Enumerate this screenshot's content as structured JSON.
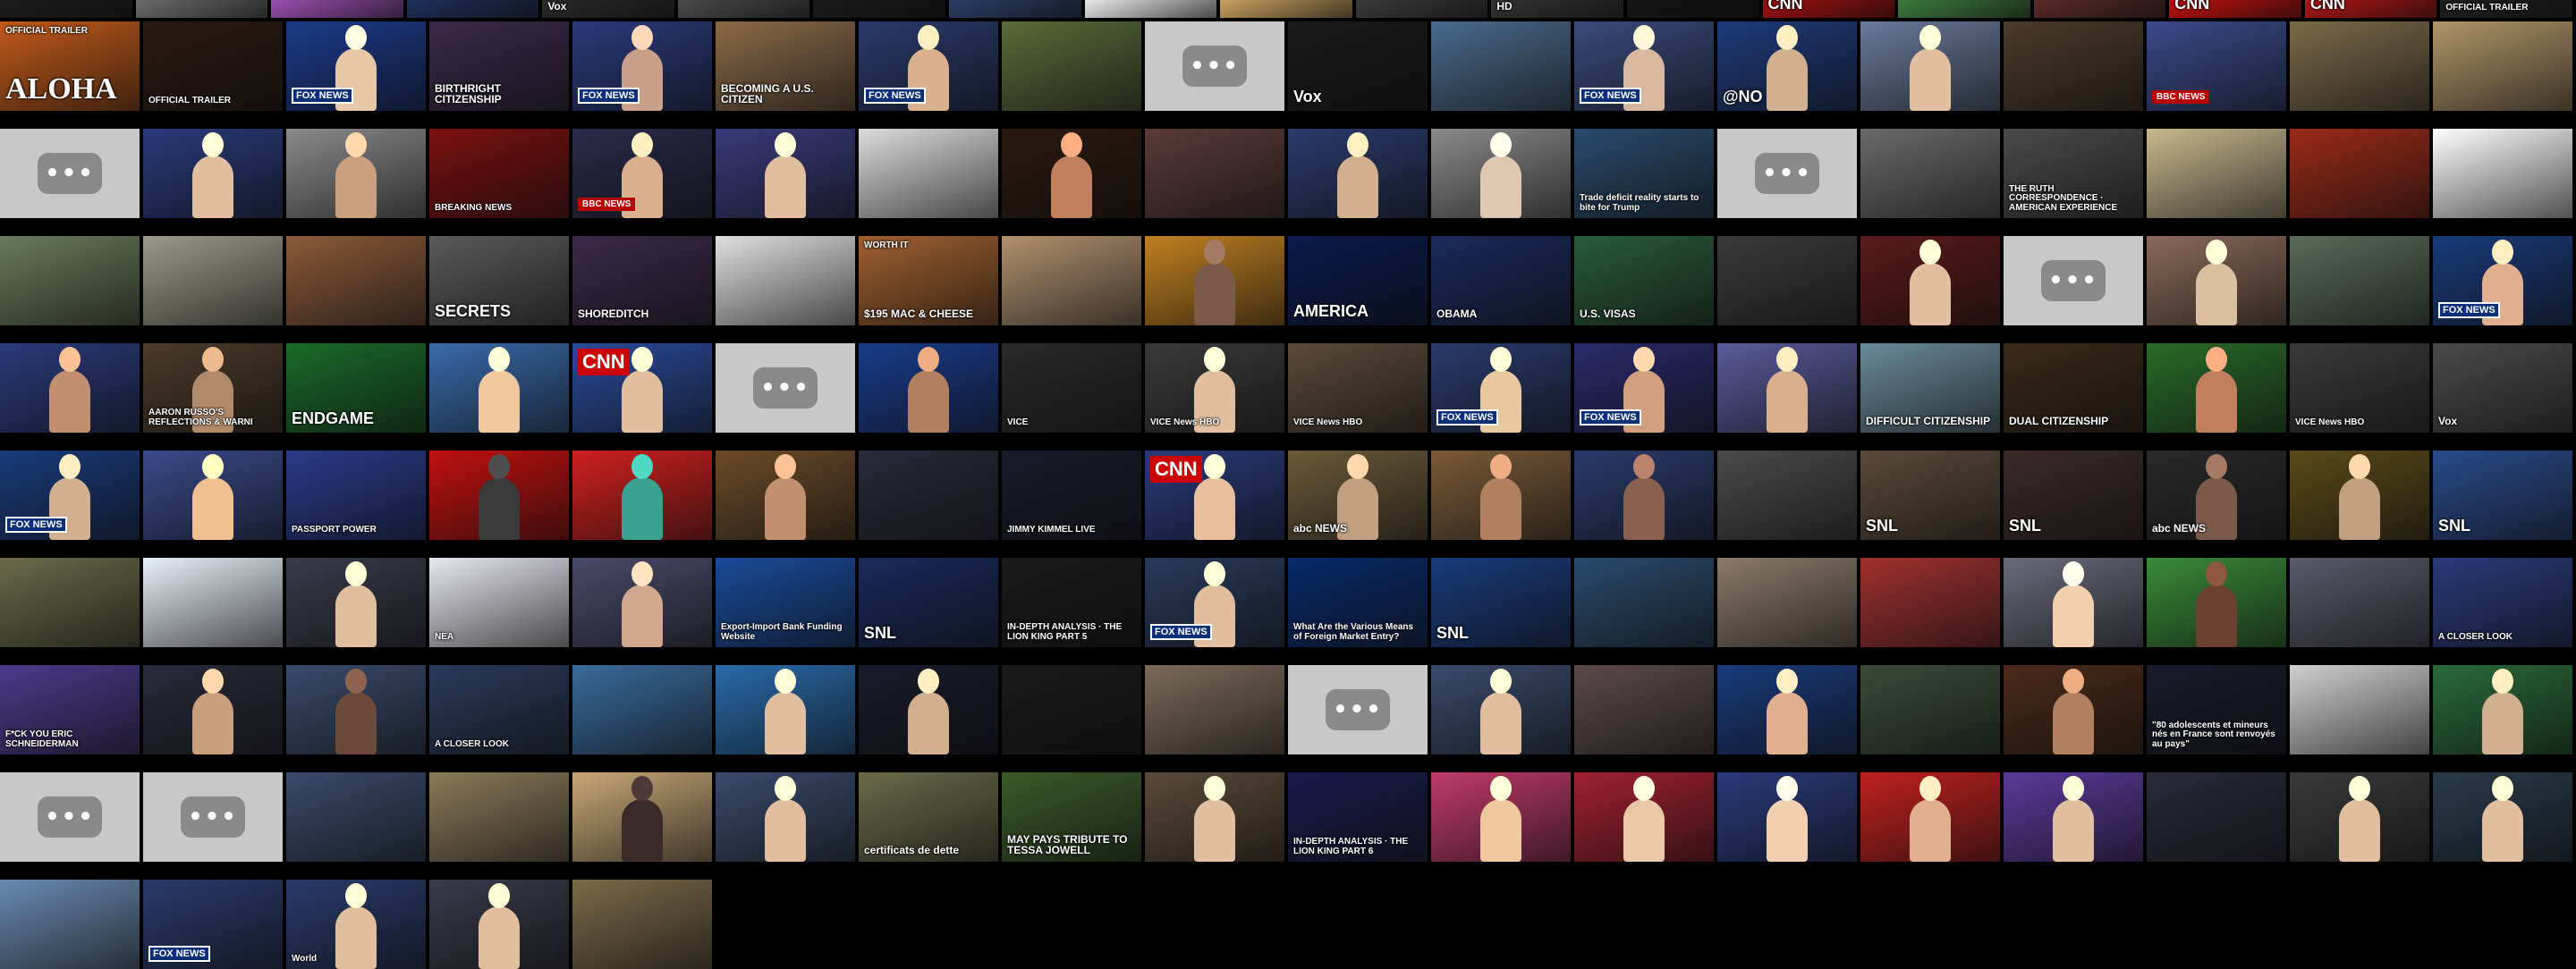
{
  "play_glyph": "•••",
  "tiles": [
    {
      "bg": "#1c1c1c"
    },
    {
      "bg": "#6b6b6b"
    },
    {
      "bg": "#9a4fb0"
    },
    {
      "bg": "#1f2f5a"
    },
    {
      "bg": "#2a2a2a",
      "cap": "Vox",
      "style": "sm"
    },
    {
      "bg": "#4a4a4a"
    },
    {
      "bg": "#1a1a1a"
    },
    {
      "bg": "#2b3e66"
    },
    {
      "bg": "#e8e8e8"
    },
    {
      "bg": "#c8a060"
    },
    {
      "bg": "#3a3a3a"
    },
    {
      "bg": "#333333",
      "cap": "HD",
      "style": "sm"
    },
    {
      "bg": "#151515"
    },
    {
      "bg": "#a01010",
      "cap": "CNN",
      "style": "mid"
    },
    {
      "bg": "#3d7a3d"
    },
    {
      "bg": "#5a2a2a"
    },
    {
      "bg": "#c01010",
      "cap": "CNN",
      "style": "mid"
    },
    {
      "bg": "#b01515",
      "cap": "CNN",
      "style": "mid"
    },
    {
      "bg": "#202020",
      "cap": "OFFICIAL TRAILER",
      "style": "xs"
    },
    {
      "bg": "#c25a1a",
      "cap": "ALOHA",
      "style": "big",
      "sub": "OFFICIAL TRAILER"
    },
    {
      "bg": "#2a1a12",
      "cap": "OFFICIAL TRAILER",
      "style": "xs"
    },
    {
      "bg": "#1d3a8a",
      "badge": "FOX NEWS",
      "btype": "fox",
      "person": "#e6c8a8"
    },
    {
      "bg": "#3a2a4a",
      "cap": "BIRTHRIGHT CITIZENSHIP",
      "style": "sm"
    },
    {
      "bg": "#2a3a7a",
      "badge": "FOX NEWS",
      "btype": "fox",
      "person": "#c9a08a"
    },
    {
      "bg": "#8a6a4a",
      "cap": "BECOMING A U.S. CITIZEN",
      "style": "sm"
    },
    {
      "bg": "#2a3a6a",
      "badge": "FOX NEWS",
      "btype": "fox",
      "person": "#d9b090"
    },
    {
      "bg": "#5a6a3a"
    },
    {
      "placeholder": true
    },
    {
      "bg": "#1a1a1a",
      "cap": "Vox",
      "style": "mid"
    },
    {
      "bg": "#4a6a8a"
    },
    {
      "bg": "#3a4a7a",
      "badge": "FOX NEWS",
      "btype": "fox",
      "person": "#d8b8a0"
    },
    {
      "bg": "#1f3a7a",
      "cap": "@NO",
      "style": "mid",
      "person": "#d0b090"
    },
    {
      "bg": "#6a7a9a",
      "person": "#e0c0a0"
    },
    {
      "bg": "#4a3a2a"
    },
    {
      "bg": "#3a4a8a",
      "badge": "BBC NEWS",
      "btype": "bbc"
    },
    {
      "bg": "#7a6a4a"
    },
    {
      "bg": "#b0956a"
    },
    {
      "placeholder": true
    },
    {
      "bg": "#2a3a7a",
      "person": "#e0c0a0"
    },
    {
      "bg": "#8a8a8a",
      "person": "#caa080"
    },
    {
      "bg": "#7a1010",
      "cap": "BREAKING NEWS",
      "style": "xs"
    },
    {
      "bg": "#2a2a4a",
      "badge": "BBC NEWS",
      "btype": "bbc",
      "person": "#d9b090"
    },
    {
      "bg": "#3a3a7a",
      "person": "#e0c0a0"
    },
    {
      "bg": "#dcdcdc"
    },
    {
      "bg": "#2a1a10",
      "person": "#c08060"
    },
    {
      "bg": "#5a3a3a"
    },
    {
      "bg": "#2a3a6a",
      "person": "#d0b090"
    },
    {
      "bg": "#8a8a8a",
      "person": "#e0c8b0"
    },
    {
      "bg": "#2a4a6a",
      "cap": "Trade deficit reality starts to bite for Trump",
      "style": "xs"
    },
    {
      "placeholder": true
    },
    {
      "bg": "#6a6a6a"
    },
    {
      "bg": "#4a4a4a",
      "cap": "THE RUTH CORRESPONDENCE · AMERICAN EXPERIENCE",
      "style": "xs"
    },
    {
      "bg": "#c8b890"
    },
    {
      "bg": "#9a2a1a"
    },
    {
      "bg": "#ffffff"
    },
    {
      "bg": "#6a7a5a"
    },
    {
      "bg": "#9a9a8a"
    },
    {
      "bg": "#8a5a3a"
    },
    {
      "bg": "#5a5a5a",
      "cap": "SECRETS",
      "style": "mid"
    },
    {
      "bg": "#3a2a4a",
      "cap": "SHOREDITCH",
      "style": "sm"
    },
    {
      "bg": "#e0e0e0"
    },
    {
      "bg": "#a06030",
      "cap": "$195 MAC & CHEESE",
      "style": "sm",
      "sub": "WORTH IT"
    },
    {
      "bg": "#b09070"
    },
    {
      "bg": "#c08020",
      "person": "#7a5a4a"
    },
    {
      "bg": "#0a1a4a",
      "cap": "AMERICA",
      "style": "mid"
    },
    {
      "bg": "#1a2a5a",
      "cap": "OBAMA",
      "style": "sm"
    },
    {
      "bg": "#2a5a3a",
      "cap": "U.S. VISAS",
      "style": "sm"
    },
    {
      "bg": "#3a3a3a"
    },
    {
      "bg": "#5a1a1a",
      "person": "#e0c0a0"
    },
    {
      "placeholder": true
    },
    {
      "bg": "#8a6a5a",
      "person": "#d8c0a0"
    },
    {
      "bg": "#5a6a5a"
    },
    {
      "bg": "#1a3a7a",
      "badge": "FOX NEWS",
      "btype": "fox",
      "person": "#e0b090"
    },
    {
      "bg": "#2a3a7a",
      "person": "#c09070"
    },
    {
      "bg": "#4a3a2a",
      "cap": "AARON RUSSO'S REFLECTIONS & WARNI",
      "style": "xs",
      "person": "#b08a6a"
    },
    {
      "bg": "#1a6a2a",
      "cap": "ENDGAME",
      "style": "mid"
    },
    {
      "bg": "#3a6aaa",
      "person": "#f0c8a0"
    },
    {
      "bg": "#2a4a9a",
      "badge": "CNN",
      "btype": "cnnb",
      "person": "#e0c0a0"
    },
    {
      "placeholder": true
    },
    {
      "bg": "#1a3a8a",
      "person": "#b08060"
    },
    {
      "bg": "#2a2a2a",
      "cap": "VICE",
      "style": "xs"
    },
    {
      "bg": "#3a3a3a",
      "cap": "VICE News HBO",
      "style": "xs",
      "person": "#e0c0a0"
    },
    {
      "bg": "#5a4a3a",
      "cap": "VICE News HBO",
      "style": "xs"
    },
    {
      "bg": "#2a3a6a",
      "badge": "FOX NEWS",
      "btype": "fox",
      "person": "#e8c8a0"
    },
    {
      "bg": "#2a2a6a",
      "badge": "FOX NEWS",
      "btype": "fox",
      "person": "#d0a080"
    },
    {
      "bg": "#5a5a9a",
      "person": "#d8b090"
    },
    {
      "bg": "#6a8a9a",
      "cap": "DIFFICULT CITIZENSHIP",
      "style": "sm"
    },
    {
      "bg": "#3a2a1a",
      "cap": "DUAL CITIZENSHIP",
      "style": "sm"
    },
    {
      "bg": "#2a6a2a",
      "person": "#c08060"
    },
    {
      "bg": "#3a3a3a",
      "cap": "VICE News HBO",
      "style": "xs"
    },
    {
      "bg": "#4a4a4a",
      "cap": "Vox",
      "style": "sm"
    },
    {
      "bg": "#1a3a7a",
      "badge": "FOX NEWS",
      "btype": "fox",
      "person": "#d0b090"
    },
    {
      "bg": "#3a4a8a",
      "person": "#f0c090"
    },
    {
      "bg": "#2a3a8a",
      "cap": "PASSPORT POWER",
      "style": "xs"
    },
    {
      "bg": "#c01010",
      "person": "#3a3a3a"
    },
    {
      "bg": "#d02020",
      "cap": "",
      "person": "#3aa090"
    },
    {
      "bg": "#6a4a2a",
      "person": "#c09070"
    },
    {
      "bg": "#2a2a3a"
    },
    {
      "bg": "#1a1a2a",
      "cap": "JIMMY KIMMEL LIVE",
      "style": "xs"
    },
    {
      "bg": "#2a3a7a",
      "badge": "CNN",
      "btype": "cnnb",
      "person": "#e8c0a0"
    },
    {
      "bg": "#6a5a3a",
      "cap": "abc NEWS",
      "style": "sm",
      "person": "#c0a080"
    },
    {
      "bg": "#7a5a3a",
      "person": "#b08060"
    },
    {
      "bg": "#2a3a6a",
      "person": "#8a6050"
    },
    {
      "bg": "#4a4a4a"
    },
    {
      "bg": "#5a4a3a",
      "cap": "SNL",
      "style": "mid"
    },
    {
      "bg": "#3a2a2a",
      "cap": "SNL",
      "style": "mid"
    },
    {
      "bg": "#2a2a2a",
      "cap": "abc NEWS",
      "style": "sm",
      "person": "#7a5a4a"
    },
    {
      "bg": "#5a4a1a",
      "person": "#c0a080"
    },
    {
      "bg": "#2a4a8a",
      "cap": "SNL",
      "style": "mid"
    },
    {
      "bg": "#6a6a4a"
    },
    {
      "bg": "#e8f0f8"
    },
    {
      "bg": "#3a3a4a",
      "person": "#e0c0a0"
    },
    {
      "bg": "#e8e8f0",
      "cap": "NEA",
      "style": "xs"
    },
    {
      "bg": "#4a4a6a",
      "person": "#d0a890"
    },
    {
      "bg": "#1a4a9a",
      "cap": "Export-Import Bank Funding Website",
      "style": "xs"
    },
    {
      "bg": "#1a2a5a",
      "cap": "SNL",
      "style": "mid"
    },
    {
      "bg": "#1a1a1a",
      "cap": "IN-DEPTH ANALYSIS · THE LION KING PART 5",
      "style": "xs"
    },
    {
      "bg": "#2a3a5a",
      "badge": "FOX NEWS",
      "btype": "fox",
      "person": "#e0c0a0"
    },
    {
      "bg": "#0a2a6a",
      "cap": "What Are the Various Means of Foreign Market Entry?",
      "style": "xs"
    },
    {
      "bg": "#1a3a7a",
      "cap": "SNL",
      "style": "mid"
    },
    {
      "bg": "#2a4a6a"
    },
    {
      "bg": "#8a7a6a"
    },
    {
      "bg": "#a03030"
    },
    {
      "bg": "#6a6a7a",
      "person": "#f0d0b0"
    },
    {
      "bg": "#3a8a3a",
      "person": "#6a4030"
    },
    {
      "bg": "#5a5a6a"
    },
    {
      "bg": "#2a3a7a",
      "cap": "A CLOSER LOOK",
      "style": "xs"
    },
    {
      "bg": "#4a3a8a",
      "cap": "F*CK YOU ERIC SCHNEIDERMAN",
      "style": "xs"
    },
    {
      "bg": "#2a2a3a",
      "person": "#c8a080"
    },
    {
      "bg": "#3a4a6a",
      "person": "#6a4a3a"
    },
    {
      "bg": "#2a3a5a",
      "cap": "A CLOSER LOOK",
      "style": "xs"
    },
    {
      "bg": "#3a6a9a"
    },
    {
      "bg": "#2a6aaa",
      "person": "#e0c0a0"
    },
    {
      "bg": "#1a1a2a",
      "person": "#d0b090"
    },
    {
      "bg": "#1a1a1a"
    },
    {
      "bg": "#7a6a5a"
    },
    {
      "placeholder": true
    },
    {
      "bg": "#3a4a6a",
      "person": "#e0c0a0"
    },
    {
      "bg": "#5a4a4a"
    },
    {
      "bg": "#1a3a7a",
      "person": "#e0b090"
    },
    {
      "bg": "#3a4a3a"
    },
    {
      "bg": "#4a2a1a",
      "person": "#b08060"
    },
    {
      "bg": "#1a1a2a",
      "cap": "\"80 adolescents et mineurs nés en France sont renvoyés au pays\"",
      "style": "xs"
    },
    {
      "bg": "#d0d0d0"
    },
    {
      "bg": "#2a6a3a",
      "person": "#d0b090"
    },
    {
      "placeholder": true
    },
    {
      "placeholder": true
    },
    {
      "bg": "#3a4a6a"
    },
    {
      "bg": "#8a7a5a"
    },
    {
      "bg": "#c8a878",
      "person": "#3a2a2a"
    },
    {
      "bg": "#3a4a6a",
      "person": "#e0c0a0"
    },
    {
      "bg": "#6a6a4a",
      "cap": "certificats de dette",
      "style": "sm"
    },
    {
      "bg": "#3a5a2a",
      "cap": "MAY PAYS TRIBUTE TO TESSA JOWELL",
      "style": "sm"
    },
    {
      "bg": "#5a4a3a",
      "person": "#e0c0a0"
    },
    {
      "bg": "#1a1a4a",
      "cap": "IN-DEPTH ANALYSIS · THE LION KING PART 6",
      "style": "xs"
    },
    {
      "bg": "#c03a6a",
      "person": "#f0c8a0"
    },
    {
      "bg": "#a02030",
      "person": "#e8c8a8"
    },
    {
      "bg": "#2a3a7a",
      "person": "#f0d0b0"
    },
    {
      "bg": "#c02020",
      "person": "#e0b090"
    },
    {
      "bg": "#5a3a9a",
      "person": "#e0c0a0"
    },
    {
      "bg": "#2a2a3a"
    },
    {
      "bg": "#3a3a3a",
      "person": "#e0c0a0"
    },
    {
      "bg": "#2a3a4a",
      "person": "#e0c0a0"
    },
    {
      "bg": "#6a8ab0"
    },
    {
      "bg": "#2a3a6a",
      "badge": "FOX NEWS",
      "btype": "fox"
    },
    {
      "bg": "#2a3a6a",
      "cap": "World",
      "style": "xs",
      "person": "#e0c0a0"
    },
    {
      "bg": "#3a3a4a",
      "person": "#e0c0a0"
    },
    {
      "bg": "#7a6a4a"
    }
  ]
}
